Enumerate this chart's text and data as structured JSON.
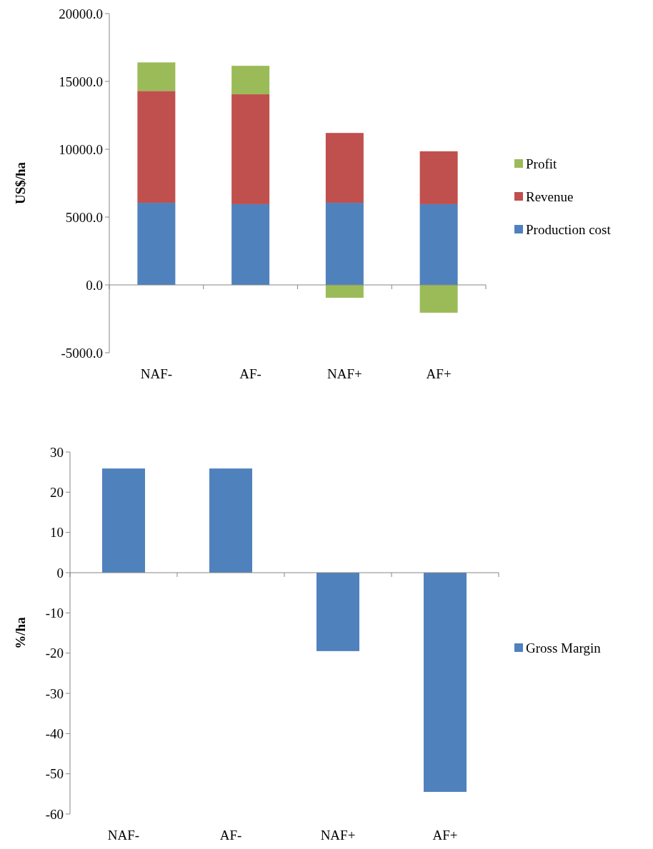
{
  "chart_data": [
    {
      "type": "bar",
      "stacked": true,
      "ylabel": "US$/ha",
      "categories": [
        "NAF-",
        "AF-",
        "NAF+",
        "AF+"
      ],
      "series": [
        {
          "name": "Production cost",
          "color": "#4f81bd",
          "values": [
            6050,
            5950,
            6050,
            5950
          ]
        },
        {
          "name": "Revenue",
          "color": "#c0504d",
          "values": [
            8250,
            8100,
            5150,
            3900
          ]
        },
        {
          "name": "Profit",
          "color": "#9bbb59",
          "values": [
            2100,
            2100,
            -950,
            -2050
          ]
        }
      ],
      "ylim": [
        -5000,
        20000
      ],
      "yticks": [
        {
          "value": -5000,
          "label": "-5000.0"
        },
        {
          "value": 0,
          "label": "0.0"
        },
        {
          "value": 5000,
          "label": "5000.0"
        },
        {
          "value": 10000,
          "label": "10000.0"
        },
        {
          "value": 15000,
          "label": "15000.0"
        },
        {
          "value": 20000,
          "label": "20000.0"
        }
      ],
      "legend": "right"
    },
    {
      "type": "bar",
      "ylabel": "%/ha",
      "categories": [
        "NAF-",
        "AF-",
        "NAF+",
        "AF+"
      ],
      "series": [
        {
          "name": "Gross Margin",
          "color": "#4f81bd",
          "values": [
            25.9,
            25.9,
            -19.5,
            -54.5
          ]
        }
      ],
      "ylim": [
        -60,
        30
      ],
      "yticks": [
        -60,
        -50,
        -40,
        -30,
        -20,
        -10,
        0,
        10,
        20,
        30
      ],
      "legend": "right"
    }
  ]
}
